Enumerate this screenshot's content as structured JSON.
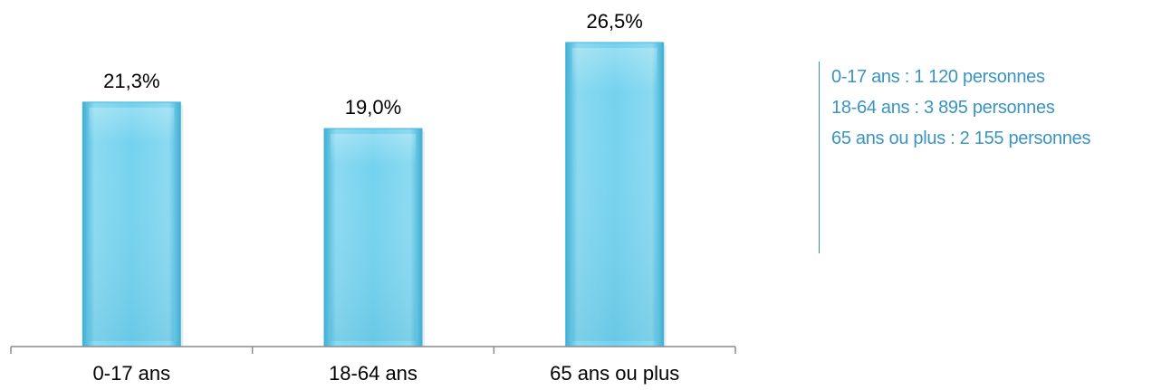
{
  "chart_data": {
    "type": "bar",
    "categories": [
      "0-17 ans",
      "18-64 ans",
      "65 ans ou plus"
    ],
    "values": [
      21.3,
      19.0,
      26.5
    ],
    "value_labels": [
      "21,3%",
      "19,0%",
      "26,5%"
    ],
    "title": "",
    "xlabel": "",
    "ylabel": "",
    "ylim": [
      0,
      30
    ],
    "grid": false,
    "bar_color": "#5cc3e0",
    "bar_highlight": "#8fdcf2"
  },
  "legend_panel": {
    "lines": [
      "0-17 ans : 1 120 personnes",
      "18-64 ans : 3 895 personnes",
      "65 ans ou plus : 2 155 personnes"
    ],
    "color": "#3a94c0"
  }
}
